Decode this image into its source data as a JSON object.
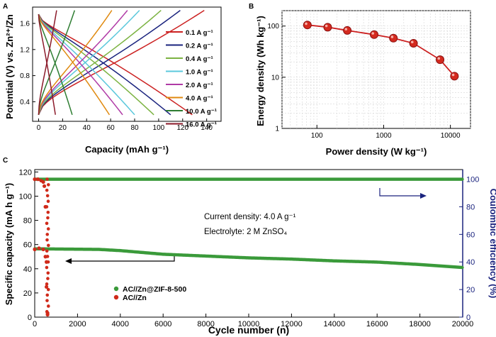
{
  "panels": {
    "a": {
      "letter": "A"
    },
    "b": {
      "letter": "B"
    },
    "c": {
      "letter": "C"
    }
  },
  "chart_data": [
    {
      "id": "A",
      "type": "line",
      "xlabel": "Capacity (mAh g⁻¹)",
      "ylabel": "Potential (V) vs. Zn²⁺/Zn",
      "xlim": [
        -5,
        152
      ],
      "ylim": [
        0.1,
        1.85
      ],
      "xticks": [
        0,
        20,
        40,
        60,
        80,
        100,
        120,
        140
      ],
      "yticks": [
        0.4,
        0.8,
        1.2,
        1.6
      ],
      "v_min": 0.2,
      "v_max": 1.8,
      "v_discharge_start": 1.74,
      "legend_position": "right",
      "series": [
        {
          "name": "0.1 A g⁻¹",
          "color": "#cc2222",
          "charge_capacity": 138,
          "discharge_capacity": 128
        },
        {
          "name": "0.2 A g⁻¹",
          "color": "#1a237e",
          "charge_capacity": 118,
          "discharge_capacity": 110
        },
        {
          "name": "0.4 A g⁻¹",
          "color": "#7cb342",
          "charge_capacity": 102,
          "discharge_capacity": 96
        },
        {
          "name": "1.0 A g⁻¹",
          "color": "#5bc8dc",
          "charge_capacity": 84,
          "discharge_capacity": 80
        },
        {
          "name": "2.0 A g⁻¹",
          "color": "#b03aa6",
          "charge_capacity": 74,
          "discharge_capacity": 70
        },
        {
          "name": "4.0 A g⁻¹",
          "color": "#e08a10",
          "charge_capacity": 61,
          "discharge_capacity": 59
        },
        {
          "name": "10.0 A g⁻¹",
          "color": "#2e7d32",
          "charge_capacity": 30,
          "discharge_capacity": 28
        },
        {
          "name": "16.0 A g⁻¹",
          "color": "#8b1a2a",
          "charge_capacity": 15,
          "discharge_capacity": 14
        }
      ]
    },
    {
      "id": "B",
      "type": "line",
      "xscale": "log",
      "yscale": "log",
      "xlabel": "Power density (W kg⁻¹)",
      "ylabel": "Energy density (Wh kg⁻¹)",
      "xlim": [
        30,
        20000
      ],
      "ylim": [
        1,
        200
      ],
      "xticks": [
        100,
        1000,
        10000
      ],
      "xtick_labels": [
        "100",
        "1000",
        "10000"
      ],
      "yticks": [
        1,
        10,
        100
      ],
      "ytick_labels": [
        "1",
        "10",
        "100"
      ],
      "grid": true,
      "color": "#cc1f1f",
      "x": [
        72,
        145,
        285,
        720,
        1400,
        2800,
        7000,
        11500
      ],
      "y": [
        105,
        95,
        82,
        68,
        58,
        46,
        22,
        10.5
      ]
    },
    {
      "id": "C",
      "type": "scatter",
      "xlabel": "Cycle number (n)",
      "ylabel": "Specific capacity (mA h g⁻¹)",
      "y2label": "Coulombic efficiency (%)",
      "xlim": [
        0,
        20000
      ],
      "ylim": [
        0,
        122
      ],
      "y2lim": [
        0,
        107
      ],
      "xticks": [
        0,
        2000,
        4000,
        6000,
        8000,
        10000,
        12000,
        14000,
        16000,
        18000,
        20000
      ],
      "yticks": [
        0,
        20,
        40,
        60,
        80,
        100,
        120
      ],
      "y2ticks": [
        0,
        20,
        40,
        60,
        80,
        100
      ],
      "annotations": [
        "Current density: 4.0 A g⁻¹",
        "Electrolyte: 2 M ZnSO₄"
      ],
      "legend_position": "bottom-left",
      "series": [
        {
          "name": "AC//Zn@ZIF-8-500",
          "color": "#3a9a3a",
          "capacity": {
            "x": [
              0,
              3000,
              4000,
              6000,
              8000,
              10000,
              12000,
              14000,
              16000,
              18000,
              20000
            ],
            "y": [
              56.5,
              56,
              55,
              52,
              50.5,
              49,
              48,
              46.5,
              45.5,
              43.5,
              41
            ]
          },
          "efficiency": {
            "x": [
              0,
              20000
            ],
            "y": [
              100,
              100
            ]
          }
        },
        {
          "name": "AC//Zn",
          "color": "#d02a1a",
          "capacity": {
            "x": [
              0,
              200,
              400,
              500,
              550,
              600
            ],
            "y": [
              56,
              57,
              56,
              50,
              25,
              2
            ]
          },
          "efficiency": {
            "x": [
              0,
              150,
              300,
              400,
              450,
              500,
              550,
              600
            ],
            "y": [
              100,
              100,
              99,
              98,
              95,
              80,
              40,
              3
            ]
          }
        }
      ]
    }
  ]
}
